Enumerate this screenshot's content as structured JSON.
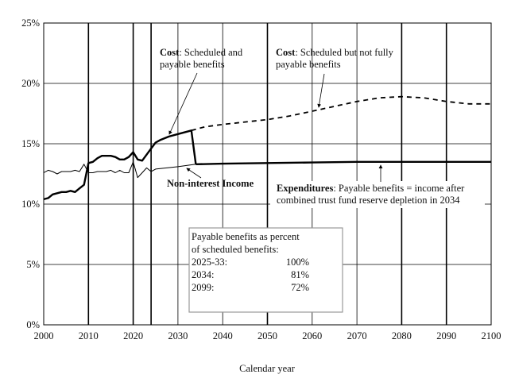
{
  "chart_data": {
    "type": "line",
    "xlabel": "Calendar year",
    "ylabel": "",
    "xlim": [
      2000,
      2100
    ],
    "ylim": [
      0,
      25
    ],
    "grid": true,
    "x_ticks": [
      "2000",
      "2010",
      "2020",
      "2030",
      "2040",
      "2050",
      "2060",
      "2070",
      "2080",
      "2090",
      "2100"
    ],
    "y_ticks": [
      "0%",
      "5%",
      "10%",
      "15%",
      "20%",
      "25%"
    ],
    "series": [
      {
        "name": "Cost: Scheduled and payable benefits",
        "style": "thick-solid",
        "x": [
          2000,
          2001,
          2002,
          2003,
          2004,
          2005,
          2006,
          2007,
          2008,
          2009,
          2010,
          2011,
          2012,
          2013,
          2014,
          2015,
          2016,
          2017,
          2018,
          2019,
          2020,
          2021,
          2022,
          2023,
          2024,
          2025,
          2026,
          2028,
          2030,
          2033,
          2034
        ],
        "y": [
          10.4,
          10.5,
          10.8,
          10.9,
          11.0,
          11.0,
          11.1,
          11.0,
          11.3,
          11.6,
          13.4,
          13.5,
          13.8,
          14.0,
          14.0,
          14.0,
          13.9,
          13.7,
          13.7,
          13.9,
          14.3,
          13.7,
          13.6,
          14.1,
          14.6,
          15.1,
          15.3,
          15.6,
          15.8,
          16.1,
          13.3
        ]
      },
      {
        "name": "Cost: Scheduled but not fully payable benefits",
        "style": "dashed",
        "x": [
          2033,
          2036,
          2040,
          2045,
          2050,
          2055,
          2060,
          2065,
          2070,
          2075,
          2080,
          2085,
          2090,
          2095,
          2100
        ],
        "y": [
          16.1,
          16.4,
          16.6,
          16.8,
          17.0,
          17.3,
          17.7,
          18.1,
          18.5,
          18.8,
          18.9,
          18.8,
          18.5,
          18.3,
          18.3
        ]
      },
      {
        "name": "Expenditures: Payable benefits = income after combined trust fund reserve depletion in 2034",
        "style": "thick-solid",
        "x": [
          2034,
          2040,
          2050,
          2060,
          2070,
          2080,
          2090,
          2100
        ],
        "y": [
          13.3,
          13.35,
          13.4,
          13.45,
          13.5,
          13.5,
          13.5,
          13.5
        ]
      },
      {
        "name": "Non-interest Income",
        "style": "thin-solid",
        "x": [
          2000,
          2001,
          2002,
          2003,
          2004,
          2005,
          2006,
          2007,
          2008,
          2009,
          2010,
          2011,
          2012,
          2013,
          2014,
          2015,
          2016,
          2017,
          2018,
          2019,
          2020,
          2021,
          2022,
          2023,
          2024,
          2025,
          2030,
          2034
        ],
        "y": [
          12.6,
          12.8,
          12.7,
          12.5,
          12.7,
          12.7,
          12.7,
          12.8,
          12.7,
          13.3,
          12.6,
          12.6,
          12.7,
          12.7,
          12.7,
          12.8,
          12.6,
          12.8,
          12.6,
          12.6,
          13.5,
          12.2,
          12.6,
          13.0,
          12.7,
          12.9,
          13.1,
          13.3
        ]
      }
    ],
    "annotations": {
      "cost_payable": {
        "bold": "Cost",
        "rest": ": Scheduled and",
        "line2": "payable benefits"
      },
      "cost_unpayable": {
        "bold": "Cost",
        "rest": ": Scheduled but not fully",
        "line2": "payable benefits"
      },
      "income": "Non-interest Income",
      "expenditures": {
        "bold": "Expenditures",
        "rest": ": Payable benefits = income after",
        "line2": "combined trust fund reserve depletion in 2034"
      }
    },
    "table_box": {
      "title1": "Payable benefits as percent",
      "title2": "of scheduled benefits:",
      "rows": [
        {
          "period": "2025-33:",
          "value": "100%"
        },
        {
          "period": "2034:",
          "value": "81%"
        },
        {
          "period": "2099:",
          "value": "72%"
        }
      ]
    }
  }
}
